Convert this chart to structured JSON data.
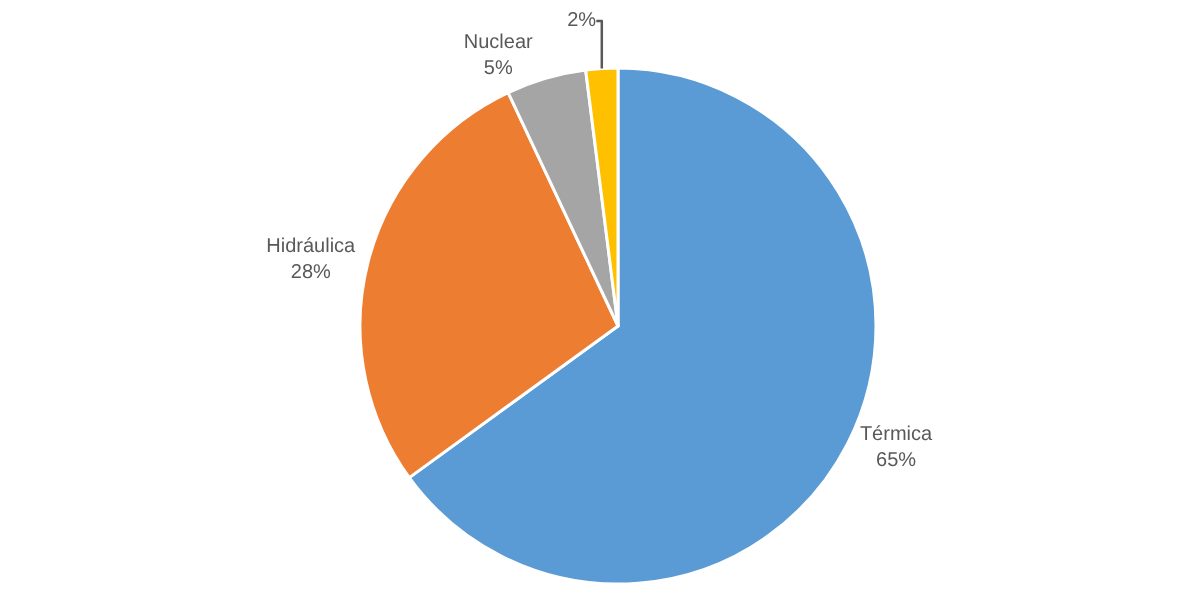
{
  "chart_data": {
    "type": "pie",
    "categories": [
      "Térmica",
      "Hidráulica",
      "Nuclear",
      null
    ],
    "values": [
      65,
      28,
      5,
      2
    ],
    "value_labels": [
      "65%",
      "28%",
      "5%",
      "2%"
    ],
    "colors": [
      "#5b9bd5",
      "#ed7d31",
      "#a5a5a5",
      "#ffc000"
    ],
    "legend": false
  }
}
